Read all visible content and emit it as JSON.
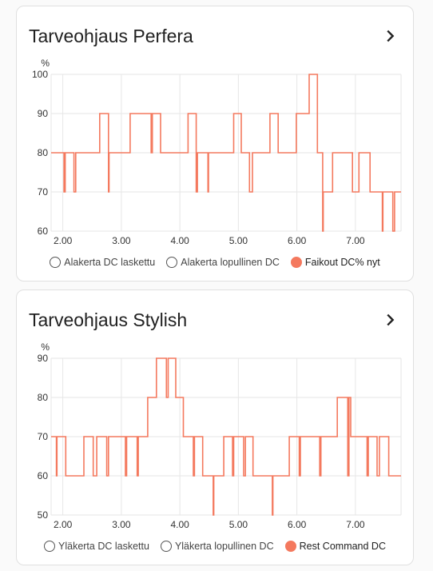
{
  "cards": [
    {
      "title": "Tarveohjaus Perfera",
      "legend": [
        {
          "label": "Alakerta DC laskettu",
          "active": false
        },
        {
          "label": "Alakerta lopullinen DC",
          "active": false
        },
        {
          "label": "Faikout DC% nyt",
          "active": true
        }
      ],
      "chart_data": {
        "type": "line",
        "ylabel": "%",
        "y_ticks": [
          60,
          70,
          80,
          90,
          100
        ],
        "ylim": [
          60,
          100
        ],
        "x_ticks": [
          "2.00",
          "3.00",
          "4.00",
          "5.00",
          "6.00",
          "7.00"
        ],
        "xlim": [
          1.8,
          7.78
        ],
        "step": true,
        "series": [
          {
            "name": "Faikout DC% nyt",
            "color": "#f4795e",
            "points": [
              [
                1.8,
                80
              ],
              [
                2.02,
                80
              ],
              [
                2.02,
                70
              ],
              [
                2.04,
                70
              ],
              [
                2.04,
                80
              ],
              [
                2.19,
                80
              ],
              [
                2.19,
                70
              ],
              [
                2.22,
                70
              ],
              [
                2.22,
                80
              ],
              [
                2.63,
                80
              ],
              [
                2.63,
                90
              ],
              [
                2.78,
                90
              ],
              [
                2.78,
                70
              ],
              [
                2.79,
                70
              ],
              [
                2.79,
                80
              ],
              [
                3.15,
                80
              ],
              [
                3.15,
                90
              ],
              [
                3.51,
                90
              ],
              [
                3.51,
                80
              ],
              [
                3.53,
                80
              ],
              [
                3.53,
                90
              ],
              [
                3.67,
                90
              ],
              [
                3.67,
                80
              ],
              [
                4.14,
                80
              ],
              [
                4.14,
                90
              ],
              [
                4.28,
                90
              ],
              [
                4.28,
                70
              ],
              [
                4.3,
                70
              ],
              [
                4.3,
                80
              ],
              [
                4.48,
                80
              ],
              [
                4.48,
                70
              ],
              [
                4.49,
                70
              ],
              [
                4.49,
                80
              ],
              [
                4.92,
                80
              ],
              [
                4.92,
                90
              ],
              [
                5.05,
                90
              ],
              [
                5.05,
                80
              ],
              [
                5.19,
                80
              ],
              [
                5.19,
                70
              ],
              [
                5.24,
                70
              ],
              [
                5.24,
                80
              ],
              [
                5.54,
                80
              ],
              [
                5.54,
                90
              ],
              [
                5.68,
                90
              ],
              [
                5.68,
                80
              ],
              [
                5.99,
                80
              ],
              [
                5.99,
                90
              ],
              [
                6.21,
                90
              ],
              [
                6.21,
                100
              ],
              [
                6.35,
                100
              ],
              [
                6.35,
                80
              ],
              [
                6.44,
                80
              ],
              [
                6.44,
                60
              ],
              [
                6.45,
                60
              ],
              [
                6.45,
                70
              ],
              [
                6.61,
                70
              ],
              [
                6.61,
                80
              ],
              [
                6.95,
                80
              ],
              [
                6.95,
                70
              ],
              [
                7.06,
                70
              ],
              [
                7.06,
                80
              ],
              [
                7.25,
                80
              ],
              [
                7.25,
                70
              ],
              [
                7.46,
                70
              ],
              [
                7.46,
                60
              ],
              [
                7.47,
                60
              ],
              [
                7.47,
                70
              ],
              [
                7.64,
                70
              ],
              [
                7.64,
                60
              ],
              [
                7.67,
                60
              ],
              [
                7.67,
                70
              ],
              [
                7.78,
                70
              ]
            ]
          }
        ]
      }
    },
    {
      "title": "Tarveohjaus Stylish",
      "legend": [
        {
          "label": "Yläkerta DC laskettu",
          "active": false
        },
        {
          "label": "Yläkerta lopullinen DC",
          "active": false
        },
        {
          "label": "Rest Command DC",
          "active": true
        }
      ],
      "chart_data": {
        "type": "line",
        "ylabel": "%",
        "y_ticks": [
          50,
          60,
          70,
          80,
          90
        ],
        "ylim": [
          50,
          90
        ],
        "x_ticks": [
          "2.00",
          "3.00",
          "4.00",
          "5.00",
          "6.00",
          "7.00"
        ],
        "xlim": [
          1.8,
          7.78
        ],
        "step": true,
        "series": [
          {
            "name": "Rest Command DC",
            "color": "#f4795e",
            "points": [
              [
                1.8,
                70
              ],
              [
                1.89,
                70
              ],
              [
                1.89,
                60
              ],
              [
                1.9,
                60
              ],
              [
                1.9,
                70
              ],
              [
                2.05,
                70
              ],
              [
                2.05,
                60
              ],
              [
                2.36,
                60
              ],
              [
                2.36,
                70
              ],
              [
                2.52,
                70
              ],
              [
                2.52,
                60
              ],
              [
                2.58,
                60
              ],
              [
                2.58,
                70
              ],
              [
                2.75,
                70
              ],
              [
                2.75,
                60
              ],
              [
                2.78,
                60
              ],
              [
                2.78,
                70
              ],
              [
                3.07,
                70
              ],
              [
                3.07,
                60
              ],
              [
                3.09,
                60
              ],
              [
                3.09,
                70
              ],
              [
                3.27,
                70
              ],
              [
                3.27,
                60
              ],
              [
                3.29,
                60
              ],
              [
                3.29,
                70
              ],
              [
                3.45,
                70
              ],
              [
                3.45,
                80
              ],
              [
                3.6,
                80
              ],
              [
                3.6,
                90
              ],
              [
                3.77,
                90
              ],
              [
                3.77,
                80
              ],
              [
                3.8,
                80
              ],
              [
                3.8,
                90
              ],
              [
                3.93,
                90
              ],
              [
                3.93,
                80
              ],
              [
                4.06,
                80
              ],
              [
                4.06,
                70
              ],
              [
                4.23,
                70
              ],
              [
                4.23,
                60
              ],
              [
                4.25,
                60
              ],
              [
                4.25,
                70
              ],
              [
                4.39,
                70
              ],
              [
                4.39,
                60
              ],
              [
                4.57,
                60
              ],
              [
                4.57,
                50
              ],
              [
                4.58,
                50
              ],
              [
                4.58,
                60
              ],
              [
                4.75,
                60
              ],
              [
                4.75,
                70
              ],
              [
                4.9,
                70
              ],
              [
                4.9,
                60
              ],
              [
                4.92,
                60
              ],
              [
                4.92,
                70
              ],
              [
                5.09,
                70
              ],
              [
                5.09,
                60
              ],
              [
                5.12,
                60
              ],
              [
                5.12,
                70
              ],
              [
                5.25,
                70
              ],
              [
                5.25,
                60
              ],
              [
                5.58,
                60
              ],
              [
                5.58,
                50
              ],
              [
                5.59,
                50
              ],
              [
                5.59,
                60
              ],
              [
                5.87,
                60
              ],
              [
                5.87,
                70
              ],
              [
                6.04,
                70
              ],
              [
                6.04,
                60
              ],
              [
                6.06,
                60
              ],
              [
                6.06,
                70
              ],
              [
                6.39,
                70
              ],
              [
                6.39,
                60
              ],
              [
                6.41,
                60
              ],
              [
                6.41,
                70
              ],
              [
                6.69,
                70
              ],
              [
                6.69,
                80
              ],
              [
                6.87,
                80
              ],
              [
                6.87,
                60
              ],
              [
                6.89,
                60
              ],
              [
                6.89,
                80
              ],
              [
                6.92,
                80
              ],
              [
                6.92,
                70
              ],
              [
                7.2,
                70
              ],
              [
                7.2,
                60
              ],
              [
                7.22,
                60
              ],
              [
                7.22,
                70
              ],
              [
                7.37,
                70
              ],
              [
                7.37,
                60
              ],
              [
                7.41,
                60
              ],
              [
                7.41,
                70
              ],
              [
                7.57,
                70
              ],
              [
                7.57,
                60
              ],
              [
                7.78,
                60
              ]
            ]
          }
        ]
      }
    }
  ]
}
